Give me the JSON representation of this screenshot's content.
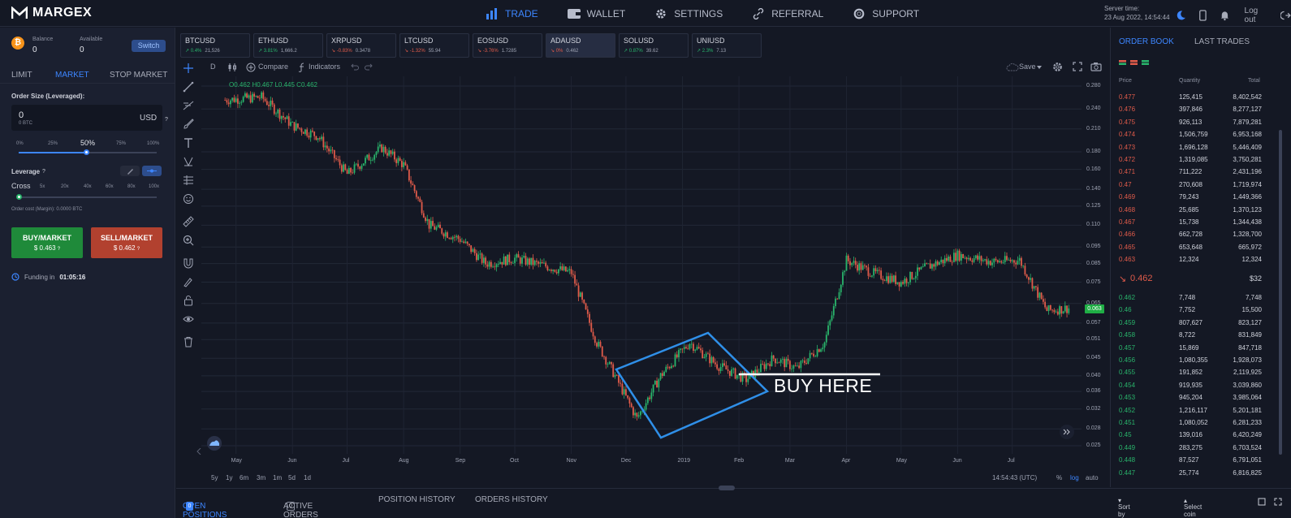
{
  "brand": "MARGEX",
  "nav": [
    {
      "label": "TRADE",
      "icon": "bar-chart-icon",
      "active": true
    },
    {
      "label": "WALLET",
      "icon": "wallet-icon",
      "active": false
    },
    {
      "label": "SETTINGS",
      "icon": "gear-icon",
      "active": false
    },
    {
      "label": "REFERRAL",
      "icon": "link-icon",
      "active": false
    },
    {
      "label": "SUPPORT",
      "icon": "lifebuoy-icon",
      "active": false
    }
  ],
  "server": {
    "label": "Server time:",
    "time": "23 Aug 2022, 14:54:44"
  },
  "logout": "Log out",
  "balance": {
    "label": "Balance",
    "value": "0",
    "available_label": "Available",
    "available_value": "0",
    "switch": "Switch"
  },
  "order_tabs": [
    "LIMIT",
    "MARKET",
    "STOP MARKET"
  ],
  "order_size": {
    "label": "Order Size (Leveraged):",
    "value": "0",
    "sub": "0 BTC",
    "unit": "USD",
    "help": "?"
  },
  "percent": [
    "0%",
    "25%",
    "50%",
    "75%",
    "100%"
  ],
  "percent_selected": 0.5,
  "leverage": {
    "label": "Leverage",
    "help": "?",
    "mode": "Cross",
    "options": [
      "5x",
      "20x",
      "40x",
      "60x",
      "80x",
      "100x"
    ],
    "selected": 0
  },
  "order_cost": "Order cost (Margin): 0.0000 BTC",
  "buy": {
    "label": "BUY/MARKET",
    "price": "$ 0.463",
    "help": "?"
  },
  "sell": {
    "label": "SELL/MARKET",
    "price": "$ 0.462",
    "help": "?"
  },
  "funding": {
    "label": "Funding in",
    "time": "01:05:16"
  },
  "tickers": [
    {
      "name": "BTCUSD",
      "chg": "0.4%",
      "price": "21,526",
      "dir": "up"
    },
    {
      "name": "ETHUSD",
      "chg": "3.81%",
      "price": "1,666.2",
      "dir": "up"
    },
    {
      "name": "XRPUSD",
      "chg": "-0.83%",
      "price": "0.3478",
      "dir": "down"
    },
    {
      "name": "LTCUSD",
      "chg": "-1.32%",
      "price": "55.94",
      "dir": "down"
    },
    {
      "name": "EOSUSD",
      "chg": "-3.76%",
      "price": "1.7285",
      "dir": "down"
    },
    {
      "name": "ADAUSD",
      "chg": "0%",
      "price": "0.462",
      "dir": "down",
      "active": true
    },
    {
      "name": "SOLUSD",
      "chg": "0.87%",
      "price": "39.62",
      "dir": "up"
    },
    {
      "name": "UNIUSD",
      "chg": "2.3%",
      "price": "7.13",
      "dir": "up"
    }
  ],
  "chart_toolbar": {
    "interval": "D",
    "compare": "Compare",
    "indicators": "Indicators",
    "save": "Save"
  },
  "ohlc": "O0.462 H0.467 L0.445 C0.462",
  "annotation": "BUY HERE",
  "chart_data": {
    "type": "candlestick",
    "scale": "log",
    "y_ticks": [
      "0.280",
      "0.240",
      "0.210",
      "0.180",
      "0.160",
      "0.140",
      "0.125",
      "0.110",
      "0.095",
      "0.085",
      "0.075",
      "0.065",
      "0.057",
      "0.051",
      "0.045",
      "0.040",
      "0.036",
      "0.032",
      "0.028",
      "0.025"
    ],
    "x_ticks": [
      "May",
      "Jun",
      "Jul",
      "Aug",
      "Sep",
      "Oct",
      "Nov",
      "Dec",
      "2019",
      "Feb",
      "Mar",
      "Apr",
      "May",
      "Jun",
      "Jul"
    ],
    "last_price": "0.063",
    "x": [
      "2018-04-25",
      "2018-05-15",
      "2018-06-01",
      "2018-06-15",
      "2018-07-01",
      "2018-07-20",
      "2018-08-01",
      "2018-08-15",
      "2018-09-01",
      "2018-09-15",
      "2018-10-01",
      "2018-10-20",
      "2018-11-01",
      "2018-11-15",
      "2018-11-25",
      "2018-12-07",
      "2018-12-20",
      "2019-01-05",
      "2019-01-20",
      "2019-02-05",
      "2019-02-20",
      "2019-03-05",
      "2019-03-20",
      "2019-04-01",
      "2019-04-15",
      "2019-05-01",
      "2019-05-15",
      "2019-06-01",
      "2019-06-20",
      "2019-07-05",
      "2019-07-20",
      "2019-08-01"
    ],
    "close": [
      0.255,
      0.26,
      0.215,
      0.2,
      0.155,
      0.185,
      0.165,
      0.11,
      0.1,
      0.085,
      0.088,
      0.083,
      0.08,
      0.05,
      0.04,
      0.03,
      0.04,
      0.05,
      0.043,
      0.039,
      0.045,
      0.042,
      0.05,
      0.087,
      0.08,
      0.075,
      0.083,
      0.09,
      0.086,
      0.087,
      0.062,
      0.063
    ]
  },
  "bottom_ranges": [
    "5y",
    "1y",
    "6m",
    "3m",
    "1m",
    "5d",
    "1d"
  ],
  "bottom_right": {
    "time": "14:54:43 (UTC)",
    "pct": "%",
    "log": "log",
    "auto": "auto"
  },
  "bottom_tabs": [
    {
      "label": "OPEN POSITIONS",
      "badge": "0",
      "active": true
    },
    {
      "label": "ACTIVE ORDERS",
      "badge": "0",
      "active": false
    },
    {
      "label": "POSITION HISTORY",
      "active": false
    },
    {
      "label": "ORDERS HISTORY",
      "active": false
    }
  ],
  "sort": {
    "by": "Sort by Date",
    "coin": "Select coin"
  },
  "book": {
    "tabs": [
      "ORDER BOOK",
      "LAST TRADES"
    ],
    "headers": [
      "Price",
      "Quantity",
      "Total"
    ],
    "asks": [
      [
        "0.477",
        "125,415",
        "8,402,542"
      ],
      [
        "0.476",
        "397,846",
        "8,277,127"
      ],
      [
        "0.475",
        "926,113",
        "7,879,281"
      ],
      [
        "0.474",
        "1,506,759",
        "6,953,168"
      ],
      [
        "0.473",
        "1,696,128",
        "5,446,409"
      ],
      [
        "0.472",
        "1,319,085",
        "3,750,281"
      ],
      [
        "0.471",
        "711,222",
        "2,431,196"
      ],
      [
        "0.47",
        "270,608",
        "1,719,974"
      ],
      [
        "0.469",
        "79,243",
        "1,449,366"
      ],
      [
        "0.468",
        "25,685",
        "1,370,123"
      ],
      [
        "0.467",
        "15,738",
        "1,344,438"
      ],
      [
        "0.466",
        "662,728",
        "1,328,700"
      ],
      [
        "0.465",
        "653,648",
        "665,972"
      ],
      [
        "0.463",
        "12,324",
        "12,324"
      ]
    ],
    "mid": {
      "price": "0.462",
      "usd": "$32"
    },
    "bids": [
      [
        "0.462",
        "7,748",
        "7,748"
      ],
      [
        "0.46",
        "7,752",
        "15,500"
      ],
      [
        "0.459",
        "807,627",
        "823,127"
      ],
      [
        "0.458",
        "8,722",
        "831,849"
      ],
      [
        "0.457",
        "15,869",
        "847,718"
      ],
      [
        "0.456",
        "1,080,355",
        "1,928,073"
      ],
      [
        "0.455",
        "191,852",
        "2,119,925"
      ],
      [
        "0.454",
        "919,935",
        "3,039,860"
      ],
      [
        "0.453",
        "945,204",
        "3,985,064"
      ],
      [
        "0.452",
        "1,216,117",
        "5,201,181"
      ],
      [
        "0.451",
        "1,080,052",
        "6,281,233"
      ],
      [
        "0.45",
        "139,016",
        "6,420,249"
      ],
      [
        "0.449",
        "283,275",
        "6,703,524"
      ],
      [
        "0.448",
        "87,527",
        "6,791,051"
      ],
      [
        "0.447",
        "25,774",
        "6,816,825"
      ]
    ]
  },
  "colors": {
    "accent": "#3d86ff",
    "up": "#29b46b",
    "down": "#e05b4a",
    "buy": "#1f8a3a",
    "sell": "#b2412f",
    "pattern": "#2f8fe8"
  }
}
